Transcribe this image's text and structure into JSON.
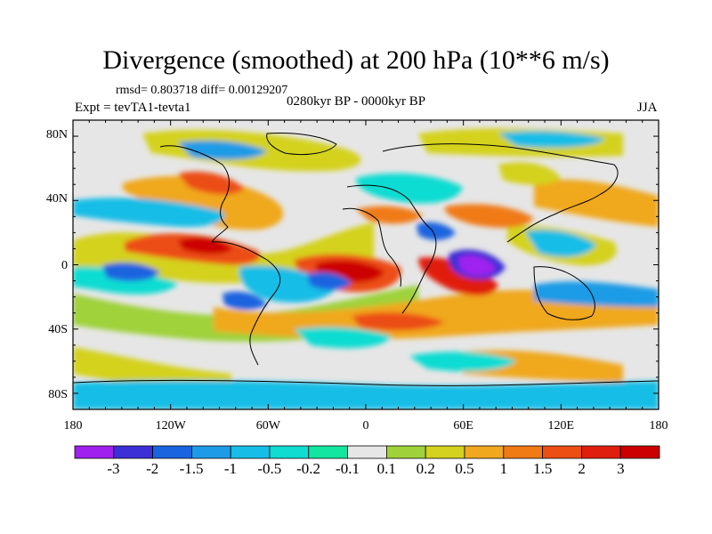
{
  "title": "Divergence (smoothed) at 200 hPa (10**6 m/s)",
  "stats": "rmsd= 0.803718 diff= 0.00129207",
  "experiment": "Expt = tevTA1-tevta1",
  "period": "0280kyr BP - 0000kyr BP",
  "season": "JJA",
  "axes": {
    "x_ticks": [
      "180",
      "120W",
      "60W",
      "0",
      "60E",
      "120E",
      "180"
    ],
    "y_ticks": [
      "80N",
      "40N",
      "0",
      "40S",
      "80S"
    ]
  },
  "colorbar": {
    "labels": [
      "-3",
      "-2",
      "-1.5",
      "-1",
      "-0.5",
      "-0.2",
      "-0.1",
      "0.1",
      "0.2",
      "0.5",
      "1",
      "1.5",
      "2",
      "3"
    ],
    "colors": [
      "#a020f0",
      "#3c2fd6",
      "#1a64e0",
      "#1e9be6",
      "#16bde6",
      "#10dcd2",
      "#12e6a0",
      "#e6e6e6",
      "#9fd23a",
      "#d4d21e",
      "#f0a81e",
      "#f07a14",
      "#ec4e14",
      "#e01e0e",
      "#cc0000"
    ]
  },
  "colors": {
    "neutral": "#e6e6e6",
    "land_outline": "#000000"
  }
}
